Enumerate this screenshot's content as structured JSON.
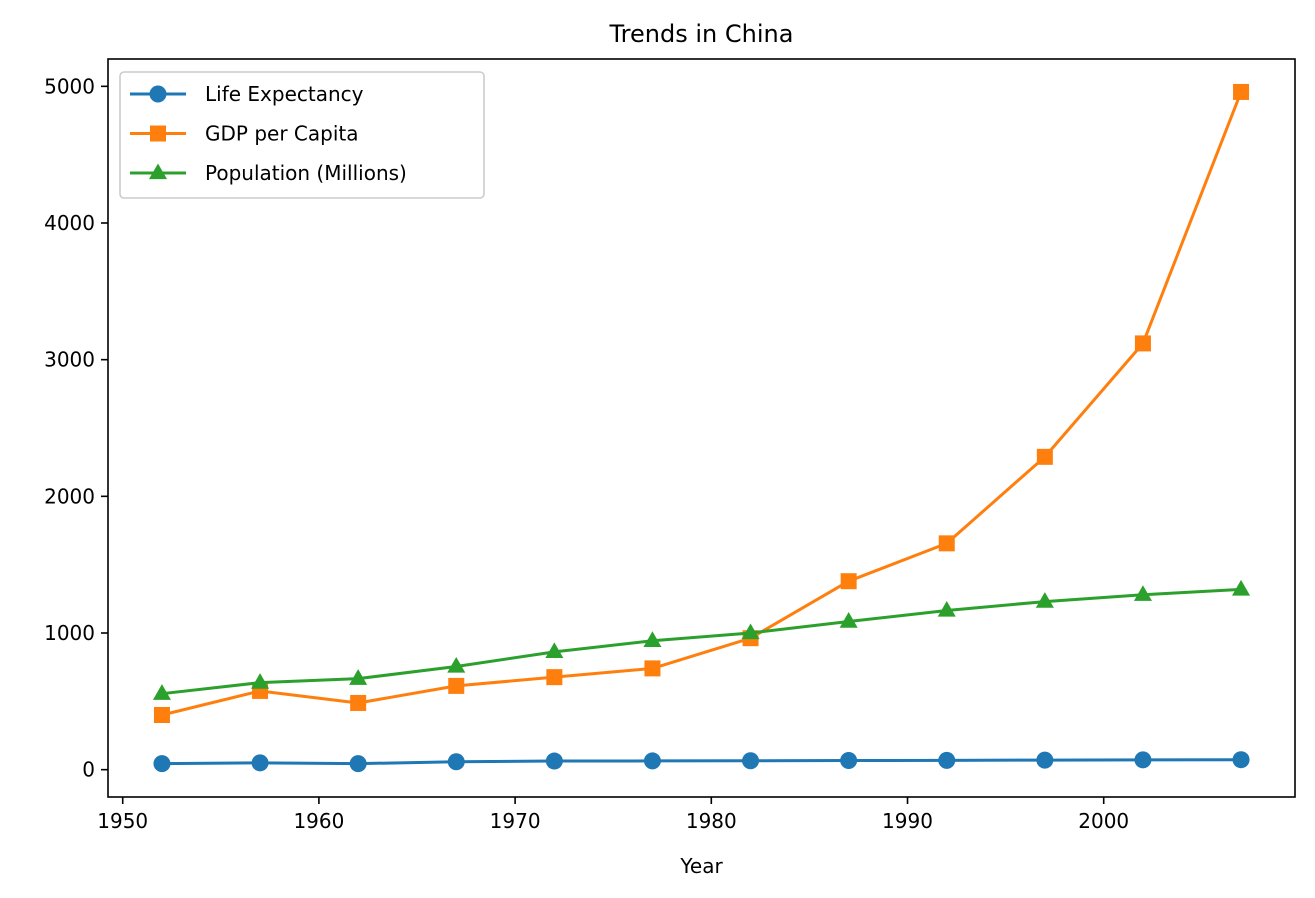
{
  "chart_data": {
    "type": "line",
    "title": "Trends in China",
    "xlabel": "Year",
    "ylabel": "",
    "xlim": [
      1949.25,
      2009.75
    ],
    "ylim": [
      -200,
      5200
    ],
    "xticks": [
      1950,
      1960,
      1970,
      1980,
      1990,
      2000
    ],
    "yticks": [
      0,
      1000,
      2000,
      3000,
      4000,
      5000
    ],
    "grid": false,
    "legend_position": "top-left",
    "x": [
      1952,
      1957,
      1962,
      1967,
      1972,
      1977,
      1982,
      1987,
      1992,
      1997,
      2002,
      2007
    ],
    "series": [
      {
        "name": "Life Expectancy",
        "color": "#1f77b4",
        "marker": "circle",
        "values": [
          44,
          50,
          44,
          58,
          63,
          64,
          65,
          67,
          68,
          70,
          72,
          73
        ]
      },
      {
        "name": "GDP per Capita",
        "color": "#ff7f0e",
        "marker": "square",
        "values": [
          400,
          576,
          488,
          613,
          677,
          741,
          962,
          1379,
          1656,
          2289,
          3119,
          4959
        ]
      },
      {
        "name": "Population (Millions)",
        "color": "#2ca02c",
        "marker": "triangle",
        "values": [
          556,
          637,
          666,
          755,
          862,
          943,
          1000,
          1084,
          1165,
          1230,
          1280,
          1319
        ]
      }
    ]
  }
}
